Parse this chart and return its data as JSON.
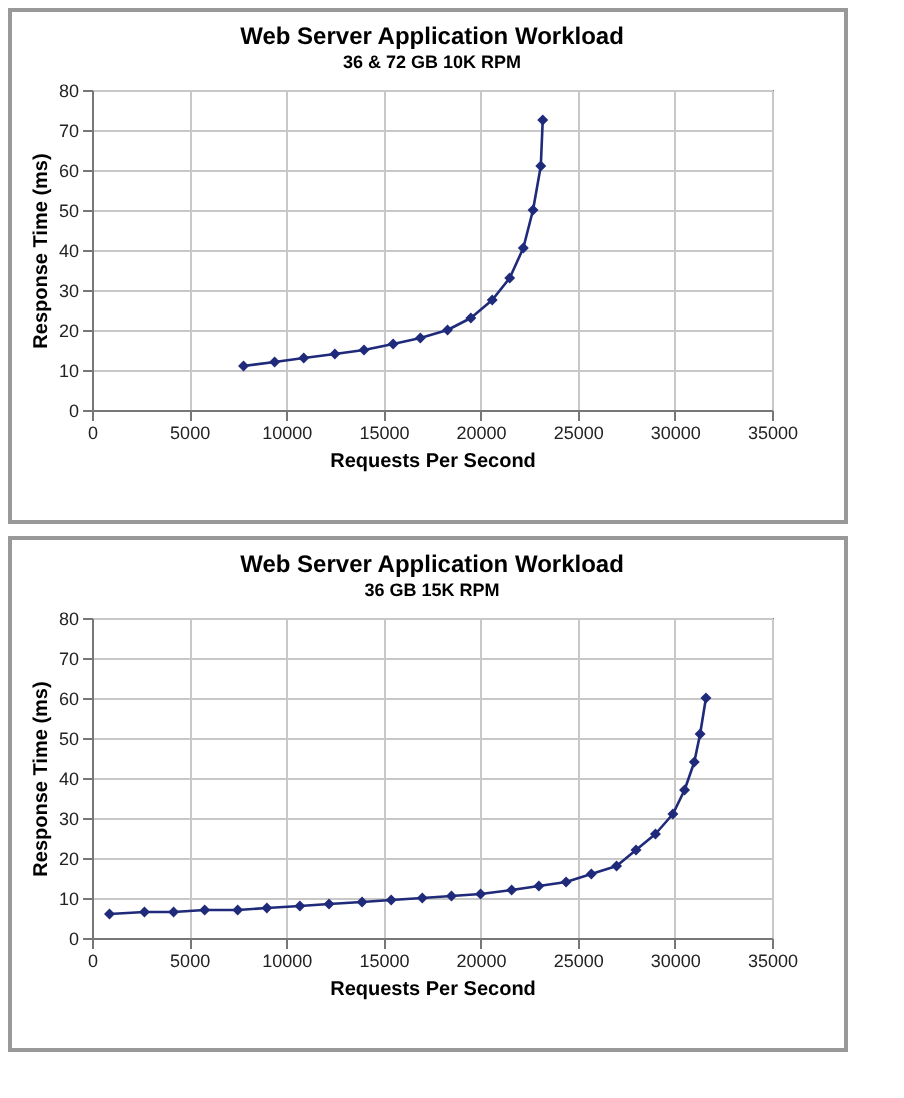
{
  "chart_data": [
    {
      "type": "line",
      "title": "Web Server Application Workload",
      "subtitle": "36 & 72 GB 10K RPM",
      "xlabel": "Requests Per Second",
      "ylabel": "Response Time (ms)",
      "x": [
        7800,
        9400,
        10900,
        12500,
        14000,
        15500,
        16900,
        18300,
        19500,
        20600,
        21500,
        22200,
        22700,
        23100,
        23200
      ],
      "series": [
        {
          "color": "#1f2a7a",
          "values": [
            11,
            12,
            13,
            14,
            15,
            16.5,
            18,
            20,
            23,
            27.5,
            33,
            40.5,
            50,
            61,
            72.5
          ]
        }
      ],
      "xlim": [
        0,
        35000
      ],
      "xticks": [
        0,
        5000,
        10000,
        15000,
        20000,
        25000,
        30000,
        35000
      ],
      "ylim": [
        0,
        80
      ],
      "yticks": [
        0,
        10,
        20,
        30,
        40,
        50,
        60,
        70,
        80
      ],
      "grid": true,
      "marker": "diamond"
    },
    {
      "type": "line",
      "title": "Web Server Application Workload",
      "subtitle": "36 GB 15K RPM",
      "xlabel": "Requests Per Second",
      "ylabel": "Response Time (ms)",
      "x": [
        900,
        2700,
        4200,
        5800,
        7500,
        9000,
        10700,
        12200,
        13900,
        15400,
        17000,
        18500,
        20000,
        21600,
        23000,
        24400,
        25700,
        27000,
        28000,
        29000,
        29900,
        30500,
        31000,
        31300,
        31600
      ],
      "series": [
        {
          "color": "#1f2a7a",
          "values": [
            6,
            6.5,
            6.5,
            7,
            7,
            7.5,
            8,
            8.5,
            9,
            9.5,
            10,
            10.5,
            11,
            12,
            13,
            14,
            16,
            18,
            22,
            26,
            31,
            37,
            44,
            51,
            60
          ]
        }
      ],
      "xlim": [
        0,
        35000
      ],
      "xticks": [
        0,
        5000,
        10000,
        15000,
        20000,
        25000,
        30000,
        35000
      ],
      "ylim": [
        0,
        80
      ],
      "yticks": [
        0,
        10,
        20,
        30,
        40,
        50,
        60,
        70,
        80
      ],
      "grid": true,
      "marker": "diamond"
    }
  ]
}
